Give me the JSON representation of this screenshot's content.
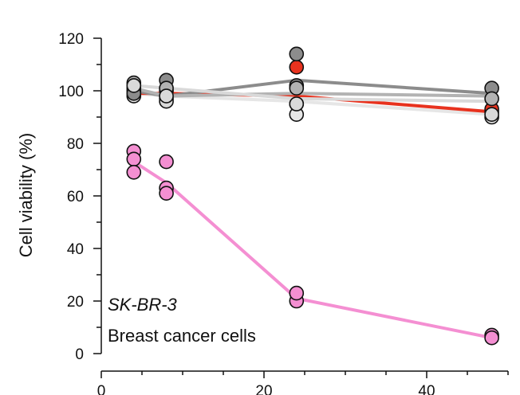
{
  "chart_data": {
    "type": "scatter",
    "title": "",
    "xlabel": "",
    "ylabel": "Cell viability (%)",
    "xlim": [
      0,
      50
    ],
    "ylim": [
      0,
      120
    ],
    "xticks": [
      0,
      20,
      40
    ],
    "yticks": [
      0,
      20,
      40,
      60,
      80,
      100,
      120
    ],
    "grid": false,
    "annotations": [
      "SK-BR-3",
      "Breast cancer cells"
    ],
    "series": [
      {
        "name": "light-gray-1",
        "color": "#e6e6e6",
        "line_x": [
          4,
          8,
          24,
          48
        ],
        "line_y": [
          99,
          98,
          96,
          91
        ],
        "points": [
          [
            4,
            98
          ],
          [
            4,
            100
          ],
          [
            8,
            97
          ],
          [
            24,
            91
          ],
          [
            24,
            95
          ],
          [
            48,
            90
          ],
          [
            48,
            92
          ]
        ]
      },
      {
        "name": "red",
        "color": "#e8321e",
        "line_x": [
          4,
          8,
          24,
          48
        ],
        "line_y": [
          99,
          99,
          98,
          92
        ],
        "points": [
          [
            4,
            101
          ],
          [
            8,
            100
          ],
          [
            24,
            109
          ],
          [
            48,
            93
          ]
        ]
      },
      {
        "name": "dark-gray",
        "color": "#8c8c8c",
        "line_x": [
          4,
          8,
          24,
          48
        ],
        "line_y": [
          100,
          98,
          104,
          99
        ],
        "points": [
          [
            4,
            99
          ],
          [
            8,
            104
          ],
          [
            24,
            114
          ],
          [
            24,
            102
          ],
          [
            48,
            101
          ]
        ]
      },
      {
        "name": "mid-gray",
        "color": "#b3b3b3",
        "line_x": [
          4,
          8,
          24,
          48
        ],
        "line_y": [
          101,
          98,
          99,
          98
        ],
        "points": [
          [
            4,
            103
          ],
          [
            8,
            101
          ],
          [
            24,
            101
          ],
          [
            48,
            97
          ]
        ]
      },
      {
        "name": "light-gray-2",
        "color": "#d9d9d9",
        "line_x": [
          4,
          8,
          24,
          48
        ],
        "line_y": [
          102,
          101,
          97,
          96
        ],
        "points": [
          [
            4,
            102
          ],
          [
            8,
            96
          ],
          [
            8,
            98
          ],
          [
            24,
            95
          ],
          [
            48,
            91
          ]
        ]
      },
      {
        "name": "pink",
        "color": "#f48fd2",
        "line_x": [
          4,
          8,
          24,
          48
        ],
        "line_y": [
          73,
          65,
          21,
          6
        ],
        "points": [
          [
            4,
            77
          ],
          [
            4,
            74
          ],
          [
            4,
            69
          ],
          [
            8,
            73
          ],
          [
            8,
            63
          ],
          [
            8,
            61
          ],
          [
            24,
            20
          ],
          [
            24,
            23
          ],
          [
            48,
            7
          ],
          [
            48,
            6
          ]
        ]
      }
    ]
  }
}
